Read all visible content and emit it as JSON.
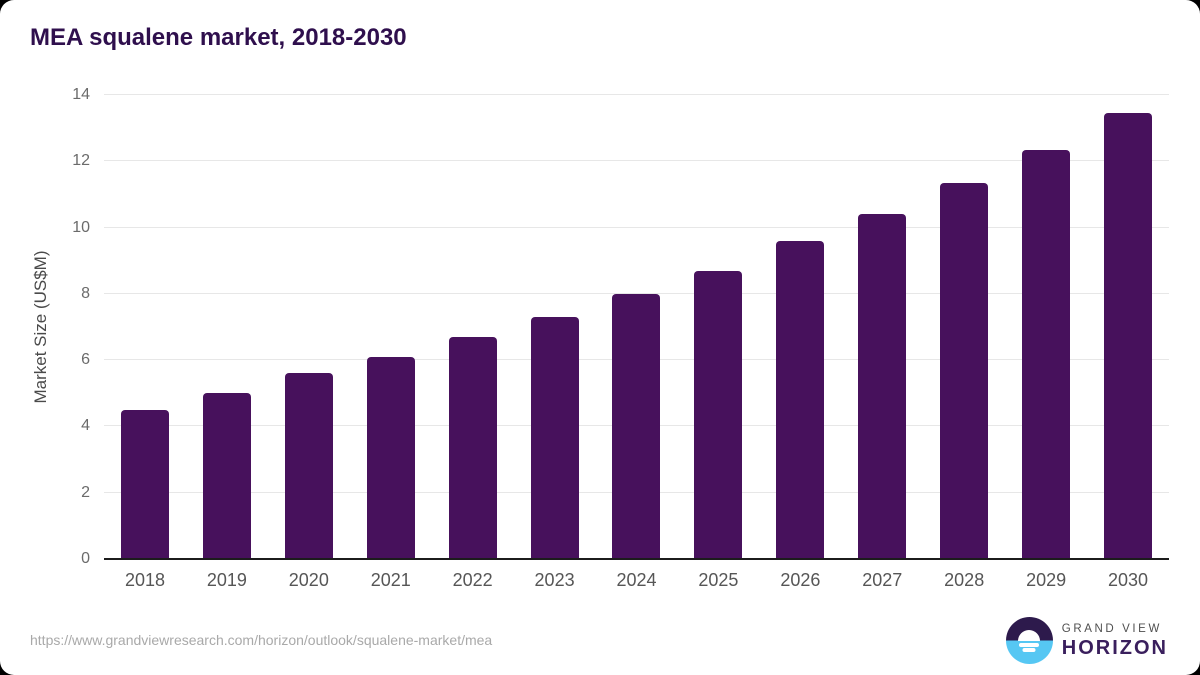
{
  "title": "MEA squalene market, 2018-2030",
  "chart_data": {
    "type": "bar",
    "title": "MEA squalene market, 2018-2030",
    "categories": [
      "2018",
      "2019",
      "2020",
      "2021",
      "2022",
      "2023",
      "2024",
      "2025",
      "2026",
      "2027",
      "2028",
      "2029",
      "2030"
    ],
    "values": [
      4.5,
      5.0,
      5.6,
      6.1,
      6.7,
      7.3,
      8.0,
      8.7,
      9.6,
      10.4,
      11.35,
      12.35,
      13.45
    ],
    "xlabel": "",
    "ylabel": "Market Size (US$M)",
    "ylim": [
      0,
      14
    ],
    "yticks": [
      0,
      2,
      4,
      6,
      8,
      10,
      12,
      14
    ],
    "grid": "horizontal",
    "legend": "none"
  },
  "footer": {
    "source_url": "https://www.grandviewresearch.com/horizon/outlook/squalene-market/mea",
    "logo": {
      "top_text": "GRAND VIEW",
      "bottom_text": "HORIZON"
    }
  },
  "colors": {
    "bar": "#47115c",
    "title_text": "#2f0f4d",
    "x_tick_text": "#565656",
    "y_tick_text": "#6b6b6b",
    "y_axis_title_text": "#4a4a4a",
    "gridline": "#e7e7e7",
    "axis_line": "#1c1c1c",
    "url_text": "#a9a9a9",
    "logo_circle_top": "#2d1a4c",
    "logo_circle_bottom": "#56c7f3",
    "logo_top_text": "#4f4f4f",
    "logo_bottom_text": "#3a1f5d"
  }
}
